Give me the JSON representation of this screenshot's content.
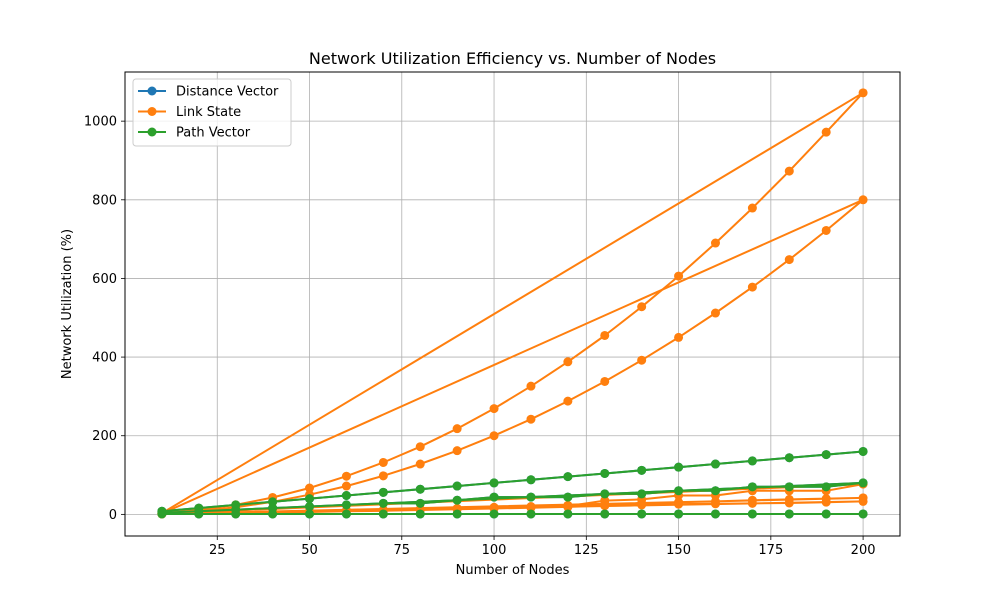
{
  "chart_data": {
    "type": "line",
    "title": "Network Utilization Efficiency vs. Number of Nodes",
    "xlabel": "Number of Nodes",
    "ylabel": "Network Utilization (%)",
    "xlim": [
      0,
      210
    ],
    "ylim": [
      -55,
      1125
    ],
    "x_ticks": [
      25,
      50,
      75,
      100,
      125,
      150,
      175,
      200
    ],
    "y_ticks": [
      0,
      200,
      400,
      600,
      800,
      1000
    ],
    "grid": true,
    "legend_position": "top-left",
    "x": [
      10,
      20,
      30,
      40,
      50,
      60,
      70,
      80,
      90,
      100,
      110,
      120,
      130,
      140,
      150,
      160,
      170,
      180,
      190,
      200
    ],
    "series": [
      {
        "name": "Distance Vector",
        "color": "#1f77b4",
        "traces": [
          [
            8,
            16,
            24,
            32,
            40,
            48,
            56,
            64,
            72,
            80,
            88,
            96,
            104,
            112,
            120,
            128,
            136,
            144,
            152,
            160
          ],
          [
            1,
            1,
            1,
            1,
            1,
            1,
            1,
            1,
            1,
            1,
            1,
            1,
            1,
            1,
            1,
            1,
            1,
            1,
            1,
            1
          ],
          [
            4,
            8,
            12,
            16,
            20,
            24,
            28,
            28,
            36,
            44,
            44,
            44,
            52,
            52,
            60,
            60,
            70,
            70,
            70,
            80
          ]
        ]
      },
      {
        "name": "Link State",
        "color": "#ff7f0e",
        "traces": [
          [
            2,
            8,
            18,
            32,
            50,
            72,
            98,
            128,
            162,
            200,
            242,
            288,
            338,
            392,
            450,
            512,
            578,
            648,
            722,
            800
          ],
          [
            3,
            11,
            24,
            43,
            67,
            97,
            132,
            172,
            218,
            269,
            326,
            388,
            455,
            528,
            606,
            690,
            779,
            873,
            972,
            1072
          ],
          [
            1,
            3,
            4,
            5,
            6,
            8,
            9,
            11,
            13,
            15,
            17,
            19,
            22,
            24,
            26,
            27,
            28,
            29,
            31,
            33
          ],
          [
            1,
            2,
            4,
            5,
            7,
            9,
            11,
            13,
            15,
            18,
            20,
            23,
            26,
            28,
            31,
            33,
            36,
            38,
            40,
            42
          ],
          [
            2,
            3,
            5,
            6,
            8,
            10,
            11,
            13,
            15,
            17,
            19,
            21,
            35,
            38,
            48,
            48,
            60,
            60,
            60,
            77
          ]
        ]
      },
      {
        "name": "Path Vector",
        "color": "#2ca02c",
        "traces": [
          [
            8,
            16,
            24,
            32,
            40,
            48,
            56,
            64,
            72,
            80,
            88,
            96,
            104,
            112,
            120,
            128,
            136,
            144,
            152,
            160
          ],
          [
            1,
            1,
            1,
            1,
            1,
            1,
            1,
            1,
            1,
            1,
            1,
            1,
            1,
            1,
            1,
            1,
            1,
            1,
            1,
            1
          ],
          [
            4,
            8,
            12,
            16,
            20,
            24,
            28,
            28,
            36,
            44,
            44,
            44,
            52,
            52,
            60,
            60,
            70,
            70,
            70,
            80
          ]
        ]
      }
    ]
  }
}
